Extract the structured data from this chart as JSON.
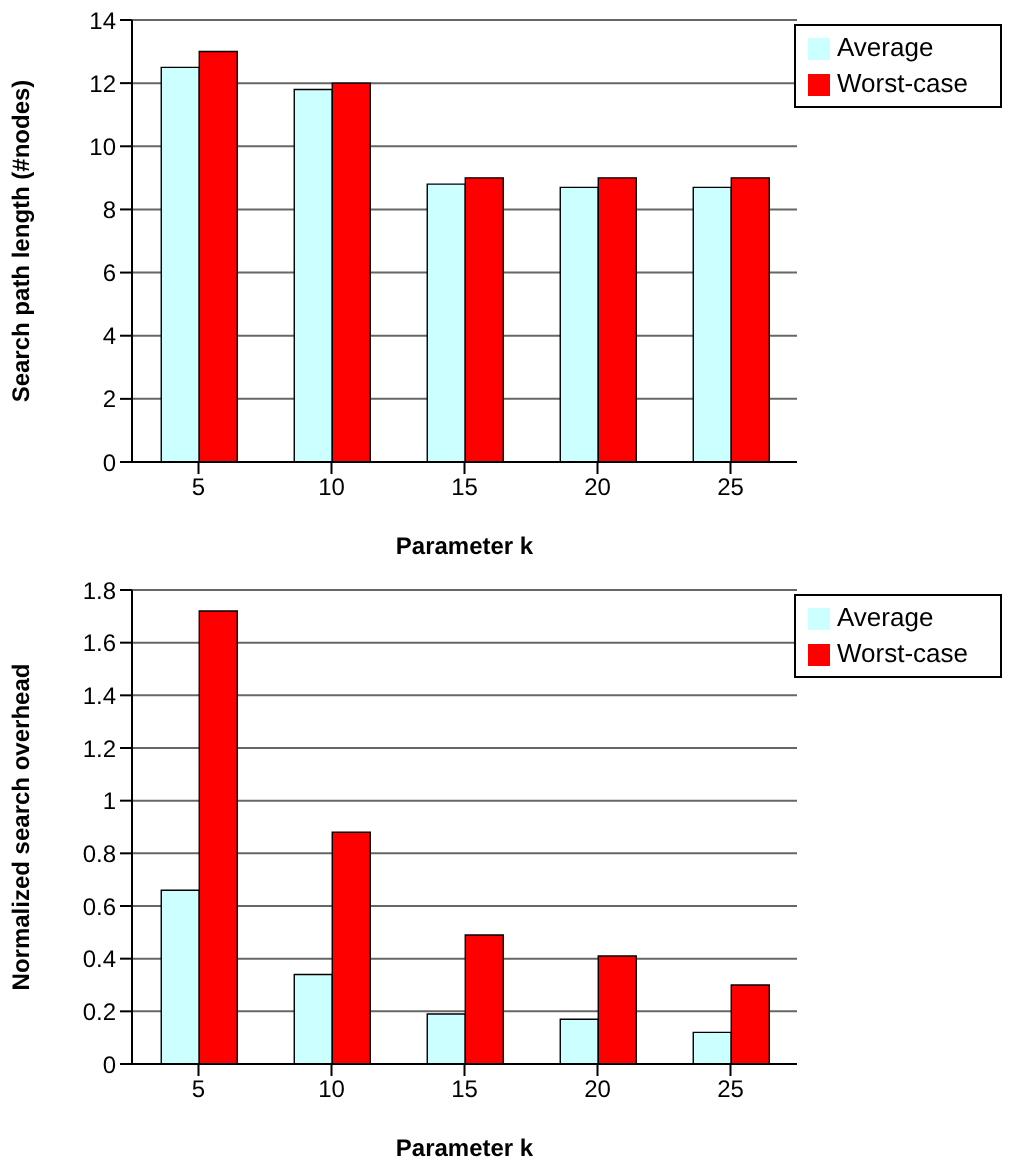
{
  "chart_data": [
    {
      "type": "bar",
      "categories": [
        "5",
        "10",
        "15",
        "20",
        "25"
      ],
      "xlabel": "Parameter k",
      "ylabel": "Search path length (#nodes)",
      "ylim": [
        0,
        14
      ],
      "yticks": [
        0,
        2,
        4,
        6,
        8,
        10,
        12,
        14
      ],
      "grid": "y",
      "legend": "top right",
      "series": [
        {
          "name": "Average",
          "color": "#ccffff",
          "values": [
            12.5,
            11.8,
            8.8,
            8.7,
            8.7
          ]
        },
        {
          "name": "Worst-case",
          "color": "#ff0000",
          "values": [
            13,
            12,
            9,
            9,
            9
          ]
        }
      ]
    },
    {
      "type": "bar",
      "categories": [
        "5",
        "10",
        "15",
        "20",
        "25"
      ],
      "xlabel": "Parameter k",
      "ylabel": "Normalized search overhead",
      "ylim": [
        0,
        1.8
      ],
      "yticks": [
        0,
        0.2,
        0.4,
        0.6,
        0.8,
        1,
        1.2,
        1.4,
        1.6,
        1.8
      ],
      "grid": "y",
      "legend": "top right",
      "series": [
        {
          "name": "Average",
          "color": "#ccffff",
          "values": [
            0.66,
            0.34,
            0.19,
            0.17,
            0.12
          ]
        },
        {
          "name": "Worst-case",
          "color": "#ff0000",
          "values": [
            1.72,
            0.88,
            0.49,
            0.41,
            0.3
          ]
        }
      ]
    }
  ]
}
